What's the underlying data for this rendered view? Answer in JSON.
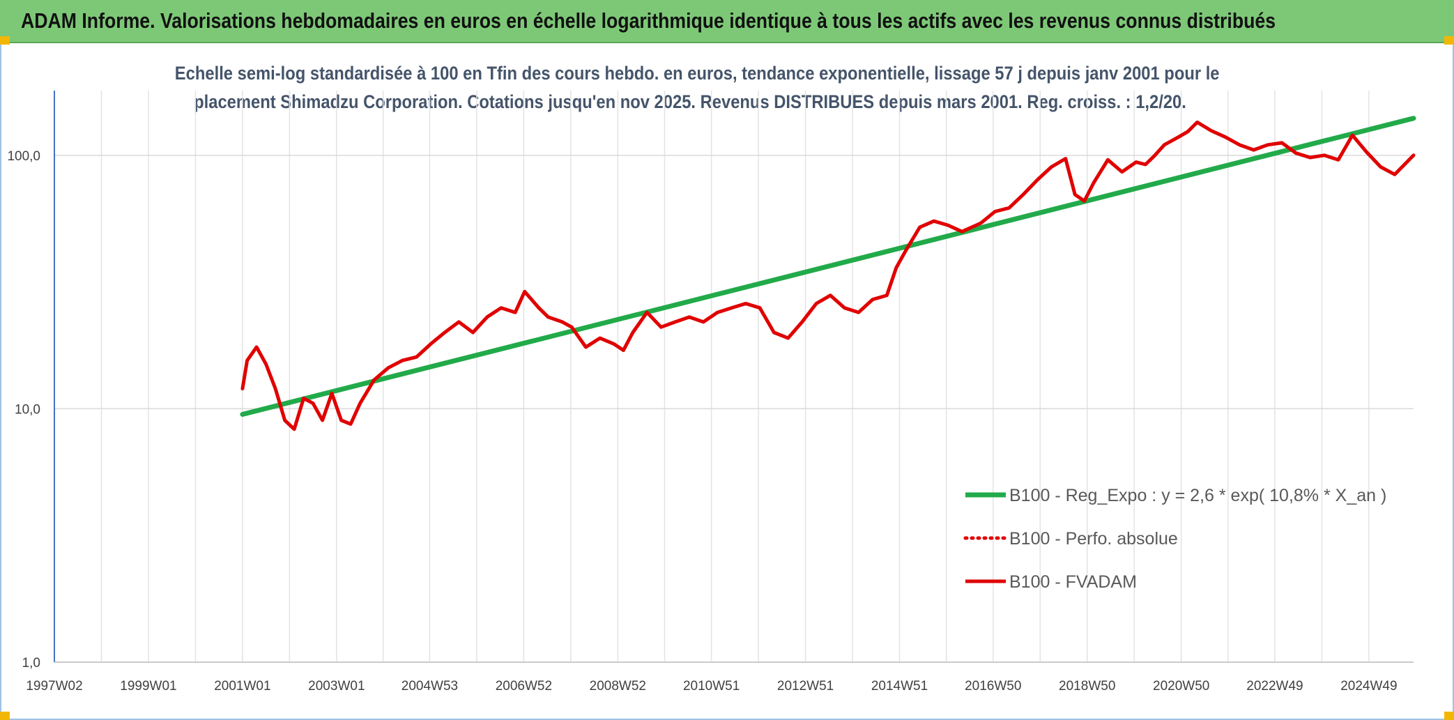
{
  "header": {
    "title": "ADAM Informe. Valorisations hebdomadaires en euros en échelle logarithmique identique à tous les actifs avec les revenus connus distribués"
  },
  "chart_data": {
    "type": "line",
    "title_line1": "Echelle semi-log standardisée à 100 en Tfin des cours hebdo. en euros, tendance exponentielle, lissage 57 j depuis janv 2001 pour le",
    "title_line2": "placement Shimadzu Corporation. Cotations jusqu'en nov 2025. Revenus DISTRIBUES depuis mars 2001. Reg. croiss. : 1,2/20.",
    "y_scale": "log",
    "ylim": [
      1,
      180
    ],
    "y_ticks": [
      {
        "value": 1,
        "label": "1,0"
      },
      {
        "value": 10,
        "label": "10,0"
      },
      {
        "value": 100,
        "label": "100,0"
      }
    ],
    "xlim": [
      1997.0,
      2025.9
    ],
    "x_ticks": [
      {
        "value": 1997.0,
        "label": "1997W02"
      },
      {
        "value": 1999.0,
        "label": "1999W01"
      },
      {
        "value": 2001.0,
        "label": "2001W01"
      },
      {
        "value": 2003.0,
        "label": "2003W01"
      },
      {
        "value": 2004.98,
        "label": "2004W53"
      },
      {
        "value": 2006.98,
        "label": "2006W52"
      },
      {
        "value": 2008.98,
        "label": "2008W52"
      },
      {
        "value": 2010.97,
        "label": "2010W51"
      },
      {
        "value": 2012.97,
        "label": "2012W51"
      },
      {
        "value": 2014.97,
        "label": "2014W51"
      },
      {
        "value": 2016.96,
        "label": "2016W50"
      },
      {
        "value": 2018.96,
        "label": "2018W50"
      },
      {
        "value": 2020.96,
        "label": "2020W50"
      },
      {
        "value": 2022.95,
        "label": "2022W49"
      },
      {
        "value": 2024.95,
        "label": "2024W49"
      }
    ],
    "grid": true,
    "legend_position": "bottom-right",
    "series": [
      {
        "name": "B100 - Reg_Expo : y = 2,6 * exp( 10,8% *  X_an )",
        "color": "#22aa4a",
        "style": "solid",
        "x": [
          2001.0,
          2025.9
        ],
        "y": [
          9.5,
          140
        ]
      },
      {
        "name": "B100 - Perfo. absolue",
        "color": "#e00000",
        "style": "dotted",
        "x": [],
        "y": []
      },
      {
        "name": "B100 - FVADAM",
        "color": "#e00000",
        "style": "solid",
        "x": [
          2001.0,
          2001.1,
          2001.3,
          2001.5,
          2001.7,
          2001.9,
          2002.1,
          2002.3,
          2002.5,
          2002.7,
          2002.9,
          2003.1,
          2003.3,
          2003.5,
          2003.8,
          2004.1,
          2004.4,
          2004.7,
          2005.0,
          2005.3,
          2005.6,
          2005.9,
          2006.2,
          2006.5,
          2006.8,
          2007.0,
          2007.3,
          2007.5,
          2007.8,
          2008.0,
          2008.3,
          2008.6,
          2008.9,
          2009.1,
          2009.3,
          2009.6,
          2009.9,
          2010.2,
          2010.5,
          2010.8,
          2011.1,
          2011.4,
          2011.7,
          2012.0,
          2012.3,
          2012.6,
          2012.9,
          2013.2,
          2013.5,
          2013.8,
          2014.1,
          2014.4,
          2014.7,
          2014.9,
          2015.1,
          2015.4,
          2015.7,
          2016.0,
          2016.3,
          2016.7,
          2017.0,
          2017.3,
          2017.6,
          2017.9,
          2018.2,
          2018.5,
          2018.7,
          2018.9,
          2019.1,
          2019.4,
          2019.7,
          2020.0,
          2020.2,
          2020.4,
          2020.6,
          2020.9,
          2021.1,
          2021.3,
          2021.6,
          2021.9,
          2022.2,
          2022.5,
          2022.8,
          2023.1,
          2023.4,
          2023.7,
          2024.0,
          2024.3,
          2024.6,
          2024.9,
          2025.2,
          2025.5,
          2025.9
        ],
        "y": [
          12,
          15.5,
          17.5,
          15,
          12,
          9,
          8.3,
          11,
          10.5,
          9,
          11.5,
          9,
          8.7,
          10.5,
          13,
          14.5,
          15.5,
          16,
          18,
          20,
          22,
          20,
          23,
          25,
          24,
          29,
          25,
          23,
          22,
          21,
          17.5,
          19,
          18,
          17,
          20,
          24,
          21,
          22,
          23,
          22,
          24,
          25,
          26,
          25,
          20,
          19,
          22,
          26,
          28,
          25,
          24,
          27,
          28,
          36,
          42,
          52,
          55,
          53,
          50,
          54,
          60,
          62,
          70,
          80,
          90,
          97,
          70,
          66,
          78,
          96,
          86,
          94,
          92,
          100,
          110,
          118,
          124,
          135,
          125,
          118,
          110,
          105,
          110,
          112,
          102,
          98,
          100,
          96,
          120,
          103,
          90,
          84,
          100
        ]
      }
    ]
  }
}
